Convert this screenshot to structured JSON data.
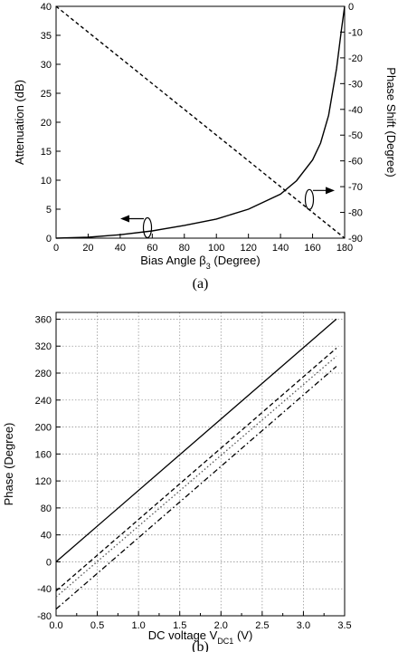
{
  "chart_data": [
    {
      "type": "line",
      "caption": "(a)",
      "xlabel_main": "Bias Angle β",
      "xlabel_sub": "3",
      "xlabel_tail": " (Degree)",
      "ylabel": "Attenuation (dB)",
      "y2label": "Phase Shift (Degree)",
      "xlim": [
        0,
        180
      ],
      "ylim": [
        0,
        40
      ],
      "y2lim": [
        -90,
        0
      ],
      "xticks": [
        "0",
        "20",
        "40",
        "60",
        "80",
        "100",
        "120",
        "140",
        "160",
        "180"
      ],
      "yticks": [
        "0",
        "5",
        "10",
        "15",
        "20",
        "25",
        "30",
        "35",
        "40"
      ],
      "y2ticks": [
        "0",
        "-10",
        "-20",
        "-30",
        "-40",
        "-50",
        "-60",
        "-70",
        "-80",
        "-90"
      ],
      "grid": false,
      "series": [
        {
          "axis": "left",
          "style": "solid",
          "x": [
            0,
            20,
            40,
            60,
            80,
            100,
            120,
            140,
            150,
            160,
            165,
            170,
            175,
            178,
            180
          ],
          "y": [
            0,
            0.15,
            0.6,
            1.25,
            2.2,
            3.3,
            5.0,
            7.6,
            9.9,
            13.5,
            16.4,
            21.2,
            29.3,
            36.0,
            40
          ]
        },
        {
          "axis": "right",
          "style": "dashed",
          "x": [
            0,
            180
          ],
          "y": [
            0,
            -90
          ]
        }
      ],
      "annotations": [
        {
          "text": "arrow-left to attenuation axis",
          "x": 57,
          "y": 1.8
        },
        {
          "text": "arrow-right to phase axis",
          "x": 158,
          "y": -75
        }
      ]
    },
    {
      "type": "line",
      "caption": "(b)",
      "xlabel_main": "DC voltage V",
      "xlabel_sub": "DC1",
      "xlabel_tail": " (V)",
      "ylabel": "Phase (Degree)",
      "xlim": [
        0,
        3.5
      ],
      "ylim": [
        -80,
        370
      ],
      "xticks": [
        "0.0",
        "0.5",
        "1.0",
        "1.5",
        "2.0",
        "2.5",
        "3.0",
        "3.5"
      ],
      "yticks": [
        "-80",
        "-40",
        "0",
        "40",
        "80",
        "120",
        "160",
        "200",
        "240",
        "280",
        "320",
        "360"
      ],
      "grid": true,
      "series": [
        {
          "style": "solid",
          "x": [
            0,
            3.4
          ],
          "y": [
            0,
            360
          ]
        },
        {
          "style": "dashed",
          "x": [
            0,
            3.4
          ],
          "y": [
            -43,
            317
          ]
        },
        {
          "style": "dotted",
          "x": [
            0,
            3.4
          ],
          "y": [
            -52,
            305
          ]
        },
        {
          "style": "dashdot",
          "x": [
            0,
            3.4
          ],
          "y": [
            -70,
            290
          ]
        }
      ]
    }
  ]
}
